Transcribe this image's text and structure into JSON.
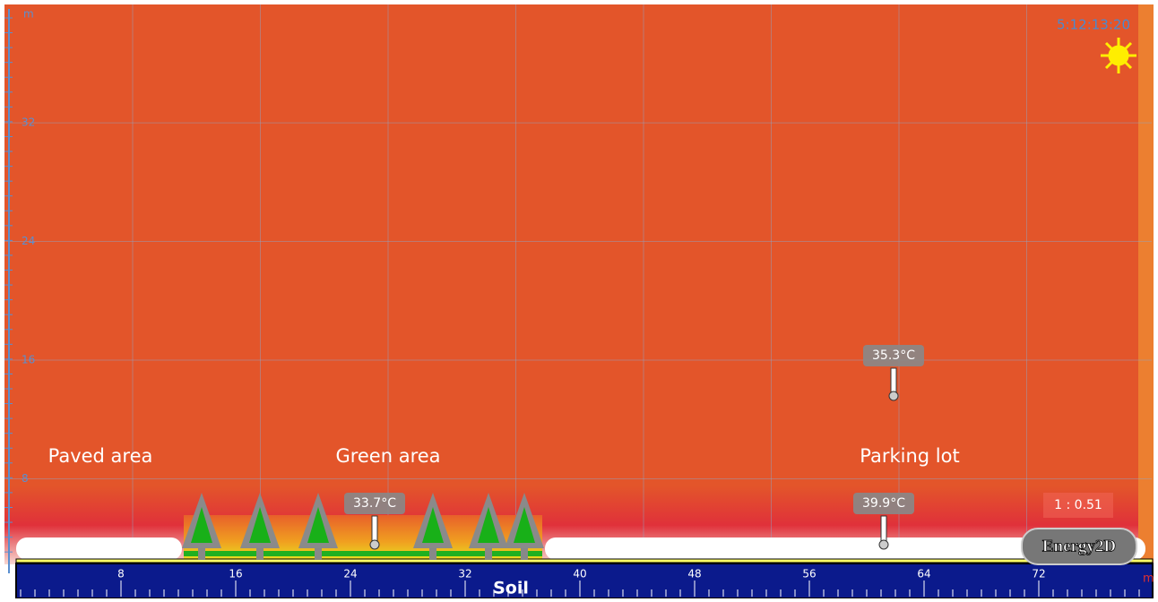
{
  "time": "5:12:13:20",
  "axis": {
    "unit_y": "m",
    "unit_x": "m",
    "yticks": [
      32,
      24,
      16,
      8
    ],
    "xticks": [
      8,
      16,
      24,
      32,
      40,
      48,
      56,
      64,
      72
    ]
  },
  "regions": [
    {
      "label": "Paved area"
    },
    {
      "label": "Green area"
    },
    {
      "label": "Parking lot"
    }
  ],
  "sensors": [
    {
      "reading": "33.7°C"
    },
    {
      "reading": "35.3°C"
    },
    {
      "reading": "39.9°C"
    }
  ],
  "scale": "1 : 0.51",
  "soil": "Soil",
  "logo": "Energy2D"
}
